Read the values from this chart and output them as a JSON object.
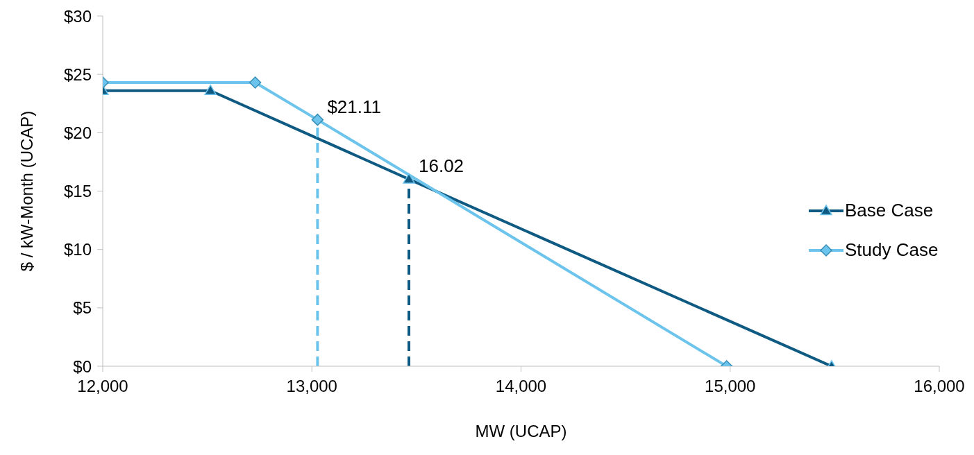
{
  "chart_data": {
    "type": "line",
    "xlabel": "MW (UCAP)",
    "ylabel": "$ / kW-Month (UCAP)",
    "series": [
      {
        "name": "Base Case",
        "color": "#0e5a82",
        "marker": "triangle",
        "x": [
          12000,
          12515,
          13464,
          15485
        ],
        "values": [
          23.6,
          23.6,
          16.02,
          0
        ]
      },
      {
        "name": "Study Case",
        "color": "#6cc4ec",
        "marker": "diamond",
        "x": [
          12000,
          12729,
          13027,
          14983
        ],
        "values": [
          24.3,
          24.3,
          21.11,
          0
        ]
      },
      {
        "color": "#6cc4ec",
        "marker": "none",
        "line_style": "dashed",
        "x": [
          13027,
          13027
        ],
        "values": [
          0,
          21.11
        ]
      },
      {
        "color": "#0e5a82",
        "marker": "none",
        "line_style": "dashed",
        "x": [
          13464,
          13464
        ],
        "values": [
          0,
          16.02
        ]
      }
    ],
    "annotations": [
      {
        "text": "$21.11",
        "x": 13027,
        "y": 21.11
      },
      {
        "text": "16.02",
        "x": 13464,
        "y": 16.02
      }
    ],
    "xlim": [
      12000,
      16000
    ],
    "xticks": [
      {
        "value": 12000,
        "label": "12,000"
      },
      {
        "value": 13000,
        "label": "13,000"
      },
      {
        "value": 14000,
        "label": "14,000"
      },
      {
        "value": 15000,
        "label": "15,000"
      },
      {
        "value": 16000,
        "label": "16,000"
      }
    ],
    "ylim": [
      0,
      30
    ],
    "yticks": [
      {
        "value": 0,
        "label": "$0"
      },
      {
        "value": 5,
        "label": "$5"
      },
      {
        "value": 10,
        "label": "$10"
      },
      {
        "value": 15,
        "label": "$15"
      },
      {
        "value": 20,
        "label": "$20"
      },
      {
        "value": 25,
        "label": "$25"
      },
      {
        "value": 30,
        "label": "$30"
      }
    ],
    "grid": false,
    "legend": "right",
    "line_style": "solid"
  }
}
